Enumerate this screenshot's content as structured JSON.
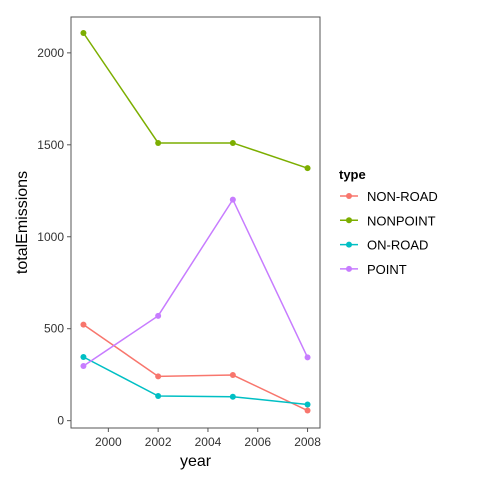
{
  "chart_data": {
    "type": "line",
    "xlabel": "year",
    "ylabel": "totalEmissions",
    "xlim": [
      1998.5,
      2008.5
    ],
    "ylim": [
      -40,
      2195
    ],
    "x_ticks": [
      2000,
      2002,
      2004,
      2006,
      2008
    ],
    "x_tick_labels": [
      "2000",
      "2002",
      "2004",
      "2006",
      "2008"
    ],
    "y_ticks": [
      0,
      500,
      1000,
      1500,
      2000
    ],
    "y_tick_labels": [
      "0",
      "500",
      "1000",
      "1500",
      "2000"
    ],
    "grid": false,
    "legend_title": "type",
    "legend_position": "right",
    "x": [
      1999,
      2002,
      2005,
      2008
    ],
    "series": [
      {
        "name": "NON-ROAD",
        "color": "#F8766D",
        "values": [
          522,
          241,
          248,
          55
        ]
      },
      {
        "name": "NONPOINT",
        "color": "#7CAE00",
        "values": [
          2108,
          1510,
          1510,
          1373
        ]
      },
      {
        "name": "ON-ROAD",
        "color": "#00BFC4",
        "values": [
          346,
          134,
          130,
          88
        ]
      },
      {
        "name": "POINT",
        "color": "#C77CFF",
        "values": [
          297,
          570,
          1202,
          344
        ]
      }
    ]
  }
}
